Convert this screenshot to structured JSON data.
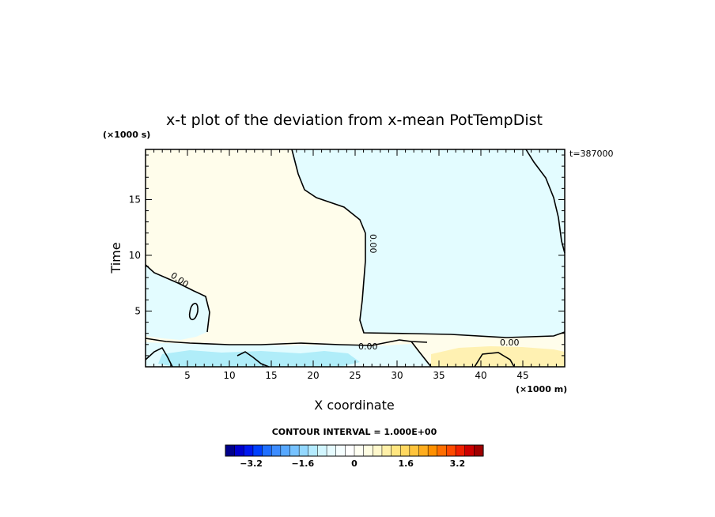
{
  "chart_data": {
    "type": "heatmap",
    "title": "x-t plot of the deviation from x-mean PotTempDist",
    "xlabel": "X coordinate",
    "ylabel": "Time",
    "x_unit": "(×1000 m)",
    "y_unit": "(×1000 s)",
    "time_stamp": "t=387000",
    "xlim": [
      0,
      50
    ],
    "ylim": [
      0,
      19.5
    ],
    "x_ticks": [
      5,
      10,
      15,
      20,
      25,
      30,
      35,
      40,
      45
    ],
    "y_ticks": [
      5,
      10,
      15
    ],
    "grid": false,
    "contour_interval_label": "CONTOUR INTERVAL = 1.000E+00",
    "contour_labels": [
      "0.00",
      "0.00",
      "0.00",
      "0.00"
    ],
    "colorbar": {
      "min": -4.0,
      "max": 4.0,
      "tick_values": [
        -3.2,
        -1.6,
        0,
        1.6,
        3.2
      ],
      "tick_labels": [
        "−3.2",
        "−1.6",
        "0",
        "1.6",
        "3.2"
      ],
      "colors": [
        "#00008b",
        "#0000cd",
        "#0018f0",
        "#0040ff",
        "#1f6fff",
        "#3c8cff",
        "#57a8ff",
        "#76c2ff",
        "#93d8ff",
        "#b4ebff",
        "#d2f6ff",
        "#e6fbff",
        "#f5feff",
        "#ffffff",
        "#fffff2",
        "#fffde2",
        "#fff8cc",
        "#fff0a8",
        "#ffe680",
        "#ffd860",
        "#ffc43c",
        "#ffad1e",
        "#ff9000",
        "#ff6e00",
        "#ff4a00",
        "#f02000",
        "#cc0000",
        "#a00000"
      ]
    },
    "regions": [
      {
        "name": "negative",
        "color": "#e3fcff"
      },
      {
        "name": "positive",
        "color": "#fffdeb"
      },
      {
        "name": "strong-negative",
        "color": "#b0edf9"
      },
      {
        "name": "strong-positive",
        "color": "#fff1b2"
      }
    ]
  }
}
